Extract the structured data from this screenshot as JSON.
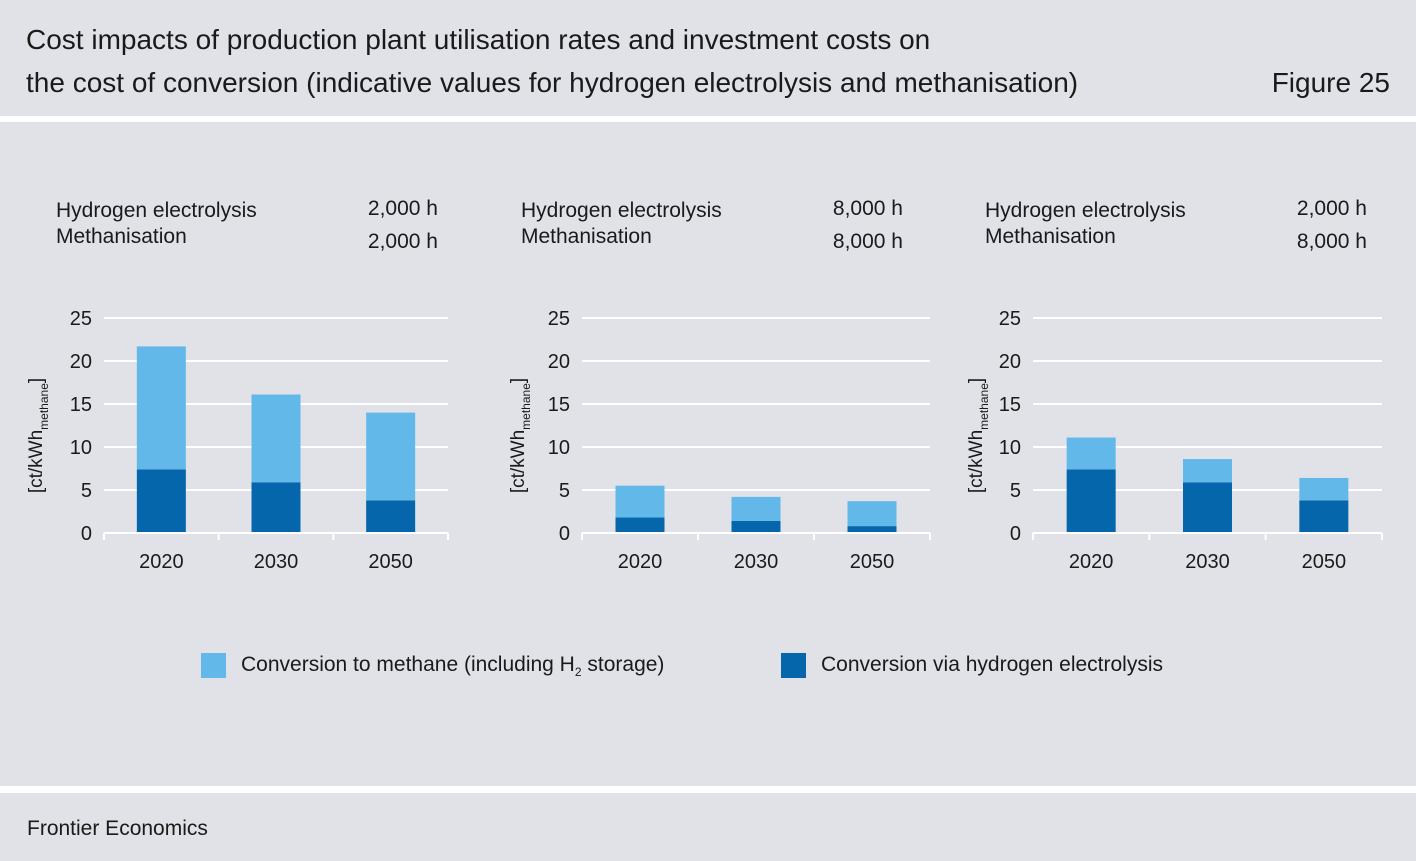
{
  "title": {
    "line1": "Cost impacts of production plant utilisation rates and investment costs on",
    "line2": "the cost of conversion (indicative values for hydrogen electrolysis and methanisation)"
  },
  "figure_label": "Figure 25",
  "source": "Frontier Economics",
  "colors": {
    "methane": "#62b8e8",
    "electrolysis": "#0566ab",
    "grid": "#ffffff",
    "band": "#e1e2e7"
  },
  "panels": [
    {
      "label_1": "Hydrogen electrolysis",
      "value_1": "2,000 h",
      "label_2": "Methanisation",
      "value_2": "2,000 h"
    },
    {
      "label_1": "Hydrogen electrolysis",
      "value_1": "8,000 h",
      "label_2": "Methanisation",
      "value_2": "8,000 h"
    },
    {
      "label_1": "Hydrogen electrolysis",
      "value_1": "2,000 h",
      "label_2": "Methanisation",
      "value_2": "8,000 h"
    }
  ],
  "legend": {
    "methane": {
      "text_before": "Conversion to methane (including H",
      "sub": "2",
      "text_after": " storage)"
    },
    "electrolysis": {
      "text": "Conversion via hydrogen electrolysis"
    }
  },
  "chart_data": [
    {
      "type": "bar",
      "stacked": true,
      "categories": [
        "2020",
        "2030",
        "2050"
      ],
      "ylabel_main": "[ct/kWh",
      "ylabel_sub": "methane",
      "ylabel_end": "]",
      "ylim": [
        0,
        25
      ],
      "yticks": [
        0,
        5,
        10,
        15,
        20,
        25
      ],
      "grid": true,
      "series": [
        {
          "name": "Conversion via hydrogen electrolysis",
          "color": "#0566ab",
          "values": [
            7.4,
            5.9,
            3.8
          ]
        },
        {
          "name": "Conversion to methane (including H2 storage)",
          "color": "#62b8e8",
          "values": [
            14.3,
            10.2,
            10.2
          ]
        }
      ]
    },
    {
      "type": "bar",
      "stacked": true,
      "categories": [
        "2020",
        "2030",
        "2050"
      ],
      "ylabel_main": "[ct/kWh",
      "ylabel_sub": "methane",
      "ylabel_end": "]",
      "ylim": [
        0,
        25
      ],
      "yticks": [
        0,
        5,
        10,
        15,
        20,
        25
      ],
      "grid": true,
      "series": [
        {
          "name": "Conversion via hydrogen electrolysis",
          "color": "#0566ab",
          "values": [
            1.8,
            1.4,
            0.8
          ]
        },
        {
          "name": "Conversion to methane (including H2 storage)",
          "color": "#62b8e8",
          "values": [
            3.7,
            2.8,
            2.9
          ]
        }
      ]
    },
    {
      "type": "bar",
      "stacked": true,
      "categories": [
        "2020",
        "2030",
        "2050"
      ],
      "ylabel_main": "[ct/kWh",
      "ylabel_sub": "methane",
      "ylabel_end": "]",
      "ylim": [
        0,
        25
      ],
      "yticks": [
        0,
        5,
        10,
        15,
        20,
        25
      ],
      "grid": true,
      "series": [
        {
          "name": "Conversion via hydrogen electrolysis",
          "color": "#0566ab",
          "values": [
            7.4,
            5.9,
            3.8
          ]
        },
        {
          "name": "Conversion to methane (including H2 storage)",
          "color": "#62b8e8",
          "values": [
            3.7,
            2.7,
            2.6
          ]
        }
      ]
    }
  ]
}
